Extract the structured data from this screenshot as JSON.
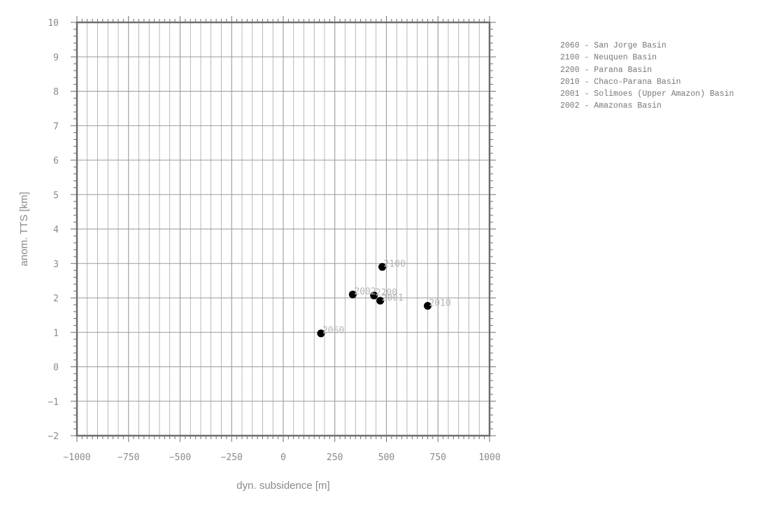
{
  "chart_data": {
    "type": "scatter",
    "title": "",
    "xlabel": "dyn. subsidence [m]",
    "ylabel": "anom. TTS [km]",
    "xlim": [
      -1000,
      1000
    ],
    "ylim": [
      -2,
      10
    ],
    "x_ticks": [
      -1000,
      -750,
      -500,
      -250,
      0,
      250,
      500,
      750,
      1000
    ],
    "x_tick_labels": [
      "−1000",
      "−750",
      "−500",
      "−250",
      "0",
      "250",
      "500",
      "750",
      "1000"
    ],
    "y_ticks": [
      -2,
      -1,
      0,
      1,
      2,
      3,
      4,
      5,
      6,
      7,
      8,
      9,
      10
    ],
    "y_tick_labels": [
      "−2",
      "−1",
      "0",
      "1",
      "2",
      "3",
      "4",
      "5",
      "6",
      "7",
      "8",
      "9",
      "10"
    ],
    "grid": true,
    "points": [
      {
        "label": "2060",
        "x": 183,
        "y": 0.97
      },
      {
        "label": "2100",
        "x": 480,
        "y": 2.9
      },
      {
        "label": "2200",
        "x": 440,
        "y": 2.07
      },
      {
        "label": "2010",
        "x": 700,
        "y": 1.77
      },
      {
        "label": "2001",
        "x": 470,
        "y": 1.92
      },
      {
        "label": "2002",
        "x": 337,
        "y": 2.1
      }
    ],
    "legend_position": "top-right",
    "legend": [
      "2060 - San Jorge Basin",
      "2100 - Neuquen Basin",
      "2200 - Parana Basin",
      "2010 - Chaco-Parana Basin",
      "2001 - Solimoes (Upper Amazon) Basin",
      "2002 - Amazonas Basin"
    ],
    "colors": {
      "marker": "#000000",
      "grid": "#9a9a9a",
      "frame": "#6e6e6e",
      "tick_label": "#8a8a8a",
      "point_label": "#b5b5b5"
    }
  }
}
